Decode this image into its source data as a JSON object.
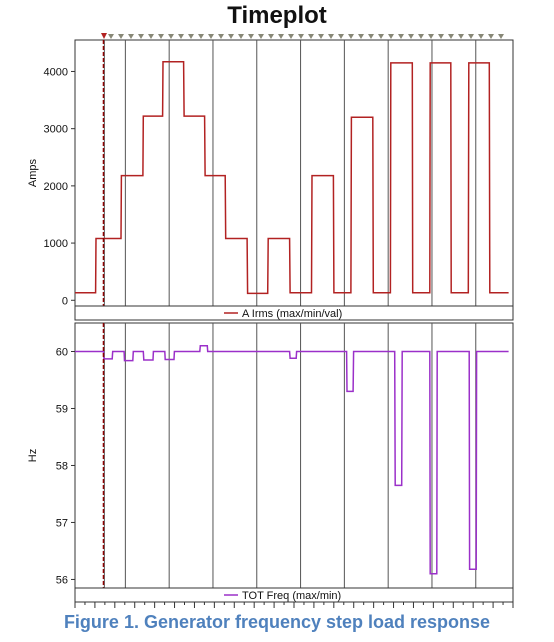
{
  "chart_data": [
    {
      "type": "line",
      "title": "Timeplot",
      "ylabel": "Amps",
      "ylim": [
        -100,
        4550
      ],
      "yticks": [
        0,
        1000,
        2000,
        3000,
        4000
      ],
      "xlim": [
        0,
        100
      ],
      "grid": true,
      "legend": "bottom-center",
      "series": [
        {
          "name": "A Irms (max/min/val)",
          "color": "#b22222",
          "x": [
            0,
            4.7,
            4.8,
            5.5,
            5.6,
            10.5,
            10.6,
            15.5,
            15.6,
            20.0,
            20.1,
            24.8,
            24.9,
            29.6,
            29.7,
            34.3,
            34.4,
            39.3,
            39.4,
            44.0,
            44.1,
            49.0,
            49.1,
            54.0,
            54.1,
            59.0,
            59.1,
            63.0,
            63.1,
            68.0,
            68.1,
            72.0,
            72.1,
            77.0,
            77.1,
            81.0,
            81.1,
            85.8,
            85.9,
            89.8,
            89.9,
            94.6,
            94.7,
            99.0
          ],
          "y": [
            130,
            130,
            1080,
            1080,
            1080,
            1080,
            2180,
            2180,
            3220,
            3220,
            4170,
            4170,
            3220,
            3220,
            2180,
            2180,
            1080,
            1080,
            120,
            120,
            1080,
            1080,
            130,
            130,
            2180,
            2180,
            130,
            130,
            3200,
            3200,
            130,
            130,
            4150,
            4150,
            130,
            130,
            4150,
            4150,
            130,
            130,
            4150,
            4150,
            130,
            130
          ]
        }
      ]
    },
    {
      "type": "line",
      "ylabel": "Hz",
      "ylim": [
        55.85,
        60.5
      ],
      "yticks": [
        56,
        57,
        58,
        59,
        60
      ],
      "xlim": [
        0,
        100
      ],
      "grid": true,
      "legend": "bottom-center",
      "series": [
        {
          "name": "TOT Freq (max/min)",
          "color": "#9b30c9",
          "x": [
            0,
            6.5,
            6.6,
            8.5,
            8.6,
            11.2,
            11.3,
            13.2,
            13.3,
            15.6,
            15.7,
            17.8,
            17.9,
            20.5,
            20.6,
            22.6,
            22.7,
            28.5,
            28.6,
            30.2,
            30.3,
            49.0,
            49.1,
            50.5,
            50.6,
            62.0,
            62.1,
            63.5,
            63.6,
            73.0,
            73.1,
            74.6,
            74.7,
            81.0,
            81.1,
            82.6,
            82.7,
            90.0,
            90.1,
            91.6,
            91.7,
            99.0
          ],
          "y": [
            60.0,
            60.0,
            59.87,
            59.87,
            60.0,
            60.0,
            59.84,
            59.84,
            60.0,
            60.0,
            59.85,
            59.85,
            60.0,
            60.0,
            59.86,
            59.86,
            60.0,
            60.0,
            60.1,
            60.1,
            60.0,
            60.0,
            59.88,
            59.88,
            60.0,
            60.0,
            59.3,
            59.3,
            60.0,
            60.0,
            57.65,
            57.65,
            60.0,
            60.0,
            56.1,
            56.1,
            60.0,
            60.0,
            56.18,
            56.18,
            60.0,
            60.0
          ]
        }
      ]
    }
  ],
  "caption": "Figure 1. Generator frequency step load response",
  "colors": {
    "caption": "#4f81bd",
    "marker_line": "#8b0000",
    "grid": "#555555"
  }
}
